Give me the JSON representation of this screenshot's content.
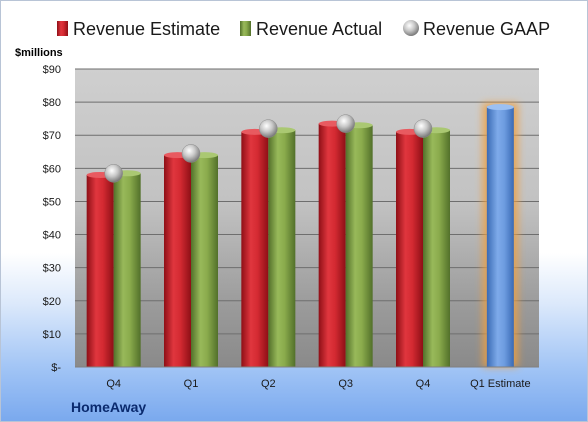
{
  "company": "HomeAway",
  "unit_label": "$millions",
  "colors": {
    "estimate": "#c8202a",
    "actual": "#7a9a3c",
    "gaap": "#b8b8b8",
    "forecast": "#5b8fd6",
    "forecast_glow": "#f0a040"
  },
  "chart_data": {
    "type": "bar",
    "categories": [
      "Q4",
      "Q1",
      "Q2",
      "Q3",
      "Q4",
      "Q1 Estimate"
    ],
    "series": [
      {
        "name": "Revenue Estimate",
        "values": [
          58,
          64,
          71,
          73.5,
          71,
          78.5
        ]
      },
      {
        "name": "Revenue Actual",
        "values": [
          58.5,
          64,
          71.5,
          73,
          71.5,
          null
        ]
      },
      {
        "name": "Revenue GAAP",
        "values": [
          58.5,
          64.5,
          72,
          73.5,
          72,
          null
        ]
      }
    ],
    "yticks": [
      "$-",
      "$10",
      "$20",
      "$30",
      "$40",
      "$50",
      "$60",
      "$70",
      "$80",
      "$90"
    ],
    "ylim": [
      0,
      90
    ],
    "grid": true,
    "legend": "top"
  }
}
